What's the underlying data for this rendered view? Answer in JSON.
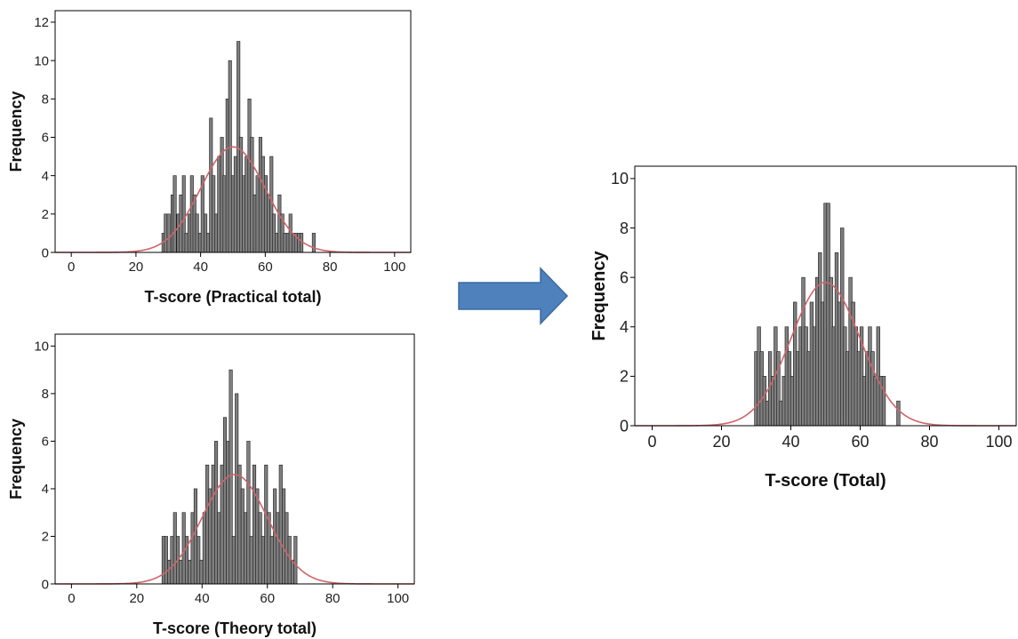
{
  "arrow": {
    "color": "#4f81bd",
    "icon": "right-arrow-icon"
  },
  "colors": {
    "bar_fill": "#7f7f7f",
    "bar_stroke": "#1a1a1a",
    "curve": "#d0646a",
    "frame": "#000000"
  },
  "chart_data": [
    {
      "id": "practical",
      "type": "bar",
      "xlabel": "T-score (Practical total)",
      "ylabel": "Frequency",
      "xlim": [
        -5,
        105
      ],
      "ylim": [
        0,
        12.6
      ],
      "xticks": [
        0,
        20,
        40,
        60,
        80,
        100
      ],
      "yticks": [
        0,
        2,
        4,
        6,
        8,
        10,
        12
      ],
      "grid": false,
      "bin_width": 0.95,
      "normal_curve": {
        "mean": 50,
        "sd": 10,
        "peak": 5.5
      },
      "x": [
        28.5,
        29.2,
        30.1,
        31.3,
        32.0,
        33.1,
        33.9,
        34.8,
        35.6,
        36.5,
        37.3,
        38.1,
        38.9,
        39.8,
        40.6,
        41.5,
        42.3,
        43.2,
        44.0,
        44.9,
        45.7,
        46.6,
        47.4,
        48.3,
        49.1,
        50.0,
        50.8,
        51.7,
        52.5,
        53.4,
        54.2,
        55.1,
        55.9,
        56.8,
        57.6,
        58.5,
        59.3,
        60.2,
        61.0,
        61.9,
        62.7,
        63.6,
        64.4,
        65.3,
        66.1,
        67.0,
        67.8,
        68.7,
        69.5,
        70.4,
        71.2,
        75.0
      ],
      "values": [
        1,
        2,
        2,
        3,
        4,
        2,
        3,
        4,
        1,
        2,
        4,
        3,
        2,
        1,
        4,
        2,
        1,
        7,
        4,
        2,
        5,
        6,
        4,
        8,
        10,
        4,
        5,
        11,
        6,
        4,
        5,
        8,
        6,
        3,
        4,
        6,
        5,
        4,
        3,
        5,
        2,
        1,
        3,
        2,
        1,
        1,
        2,
        1,
        1,
        1,
        1,
        1
      ]
    },
    {
      "id": "theory",
      "type": "bar",
      "xlabel": "T-score (Theory total)",
      "ylabel": "Frequency",
      "xlim": [
        -5,
        105
      ],
      "ylim": [
        0,
        10.5
      ],
      "xticks": [
        0,
        20,
        40,
        60,
        80,
        100
      ],
      "yticks": [
        0,
        2,
        4,
        6,
        8,
        10
      ],
      "grid": false,
      "bin_width": 0.95,
      "normal_curve": {
        "mean": 50,
        "sd": 10,
        "peak": 4.6
      },
      "x": [
        28.2,
        29.0,
        29.9,
        30.8,
        31.7,
        32.6,
        33.5,
        34.4,
        35.3,
        36.2,
        37.1,
        38.0,
        38.9,
        39.8,
        40.7,
        41.6,
        42.5,
        43.4,
        44.3,
        45.2,
        46.1,
        47.0,
        47.9,
        48.8,
        49.7,
        50.6,
        51.5,
        52.4,
        53.3,
        54.2,
        55.1,
        56.0,
        56.9,
        57.8,
        58.7,
        59.6,
        60.5,
        61.4,
        62.3,
        63.2,
        64.1,
        65.0,
        65.9,
        66.8,
        67.7,
        68.6
      ],
      "values": [
        2,
        2,
        1,
        2,
        3,
        2,
        1,
        3,
        2,
        1,
        3,
        4,
        2,
        1,
        3,
        5,
        4,
        5,
        6,
        3,
        5,
        7,
        6,
        9,
        2,
        8,
        5,
        4,
        3,
        6,
        2,
        5,
        4,
        3,
        2,
        5,
        3,
        2,
        4,
        3,
        5,
        4,
        3,
        2,
        1,
        2
      ]
    },
    {
      "id": "total",
      "type": "bar",
      "xlabel": "T-score (Total)",
      "ylabel": "Frequency",
      "xlim": [
        -5,
        105
      ],
      "ylim": [
        0,
        10.5
      ],
      "xticks": [
        0,
        20,
        40,
        60,
        80,
        100
      ],
      "yticks": [
        0,
        2,
        4,
        6,
        8,
        10
      ],
      "grid": false,
      "bin_width": 0.95,
      "normal_curve": {
        "mean": 50,
        "sd": 10,
        "peak": 5.8
      },
      "x": [
        30.0,
        30.8,
        31.6,
        32.4,
        33.2,
        34.0,
        34.8,
        35.6,
        36.4,
        37.2,
        38.0,
        38.8,
        39.6,
        40.4,
        41.2,
        42.0,
        42.8,
        43.6,
        44.4,
        45.2,
        46.0,
        46.8,
        47.6,
        48.4,
        49.2,
        50.0,
        50.8,
        51.6,
        52.4,
        53.2,
        54.0,
        54.8,
        55.6,
        56.4,
        57.2,
        58.0,
        58.8,
        59.6,
        60.4,
        61.2,
        62.0,
        62.8,
        63.6,
        64.4,
        65.2,
        66.0,
        66.8,
        71.0
      ],
      "values": [
        3,
        4,
        3,
        2,
        1,
        3,
        2,
        4,
        3,
        1,
        2,
        4,
        3,
        2,
        5,
        3,
        4,
        6,
        4,
        3,
        5,
        4,
        6,
        7,
        5,
        9,
        9,
        6,
        4,
        7,
        5,
        8,
        4,
        3,
        6,
        5,
        4,
        3,
        4,
        2,
        3,
        4,
        3,
        2,
        4,
        2,
        2,
        1
      ]
    }
  ]
}
